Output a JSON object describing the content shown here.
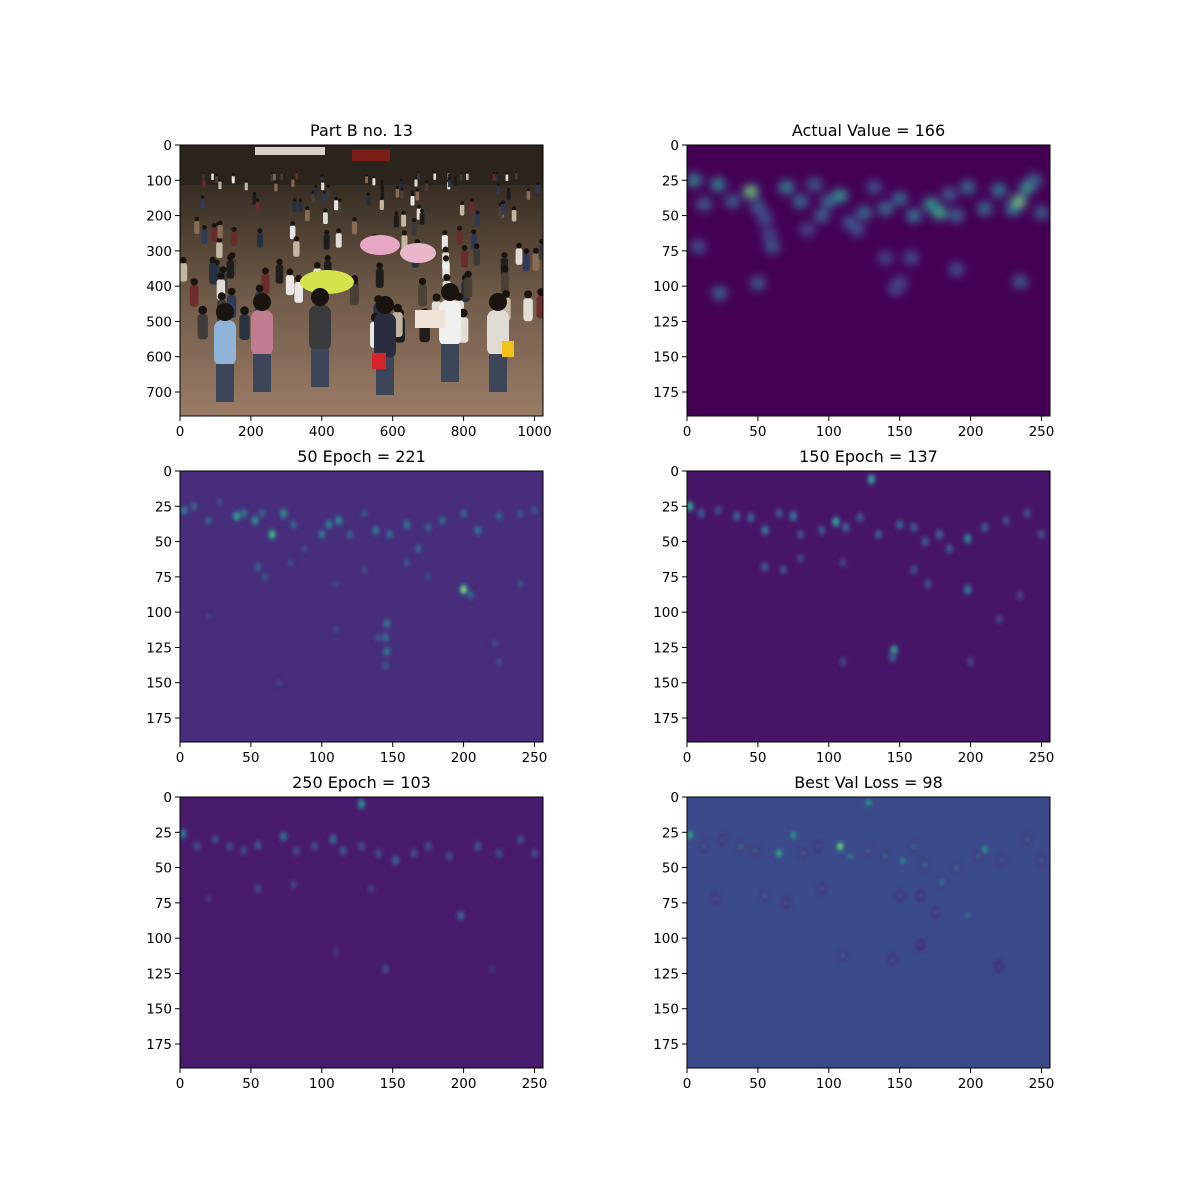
{
  "chart_data": [
    {
      "type": "heatmap",
      "content": "photo",
      "title": "Part B no. 13",
      "x_range": [
        0,
        1024
      ],
      "y_range": [
        0,
        768
      ],
      "x_ticks": [
        0,
        200,
        400,
        600,
        800,
        1000
      ],
      "y_ticks": [
        0,
        100,
        200,
        300,
        400,
        500,
        600,
        700
      ]
    },
    {
      "type": "heatmap",
      "content": "density",
      "title": "Actual Value = 166",
      "x_range": [
        0,
        256
      ],
      "y_range": [
        0,
        192
      ],
      "x_ticks": [
        0,
        50,
        100,
        150,
        200,
        250
      ],
      "y_ticks": [
        0,
        25,
        50,
        75,
        100,
        125,
        150,
        175
      ],
      "background": "#440154",
      "blobs": [
        [
          5,
          25,
          0.6
        ],
        [
          12,
          42,
          0.4
        ],
        [
          8,
          72,
          0.35
        ],
        [
          22,
          28,
          0.6
        ],
        [
          32,
          40,
          0.4
        ],
        [
          45,
          33,
          0.95
        ],
        [
          50,
          44,
          0.4
        ],
        [
          55,
          52,
          0.35
        ],
        [
          58,
          63,
          0.3
        ],
        [
          70,
          30,
          0.6
        ],
        [
          80,
          40,
          0.5
        ],
        [
          90,
          28,
          0.4
        ],
        [
          95,
          50,
          0.45
        ],
        [
          100,
          40,
          0.5
        ],
        [
          108,
          36,
          0.7
        ],
        [
          115,
          55,
          0.4
        ],
        [
          125,
          48,
          0.5
        ],
        [
          132,
          30,
          0.35
        ],
        [
          140,
          45,
          0.5
        ],
        [
          150,
          38,
          0.5
        ],
        [
          160,
          50,
          0.55
        ],
        [
          172,
          42,
          0.7
        ],
        [
          178,
          48,
          0.8
        ],
        [
          185,
          35,
          0.4
        ],
        [
          190,
          50,
          0.45
        ],
        [
          198,
          30,
          0.5
        ],
        [
          210,
          45,
          0.5
        ],
        [
          220,
          32,
          0.55
        ],
        [
          230,
          45,
          0.6
        ],
        [
          234,
          40,
          0.95
        ],
        [
          240,
          30,
          0.75
        ],
        [
          245,
          25,
          0.45
        ],
        [
          250,
          48,
          0.4
        ],
        [
          60,
          72,
          0.4
        ],
        [
          85,
          60,
          0.3
        ],
        [
          120,
          60,
          0.35
        ],
        [
          140,
          80,
          0.3
        ],
        [
          158,
          80,
          0.35
        ],
        [
          190,
          88,
          0.35
        ],
        [
          150,
          98,
          0.4
        ],
        [
          147,
          102,
          0.3
        ],
        [
          50,
          98,
          0.4
        ],
        [
          23,
          105,
          0.45
        ],
        [
          235,
          97,
          0.4
        ]
      ]
    },
    {
      "type": "heatmap",
      "content": "density",
      "title": "50 Epoch = 221",
      "x_range": [
        0,
        256
      ],
      "y_range": [
        0,
        192
      ],
      "x_ticks": [
        0,
        50,
        100,
        150,
        200,
        250
      ],
      "y_ticks": [
        0,
        25,
        50,
        75,
        100,
        125,
        150,
        175
      ],
      "background": "#472d7b",
      "blobs": [
        [
          3,
          28,
          0.5
        ],
        [
          10,
          25,
          0.4
        ],
        [
          20,
          35,
          0.4
        ],
        [
          28,
          22,
          0.3
        ],
        [
          40,
          32,
          0.7
        ],
        [
          45,
          30,
          0.5
        ],
        [
          53,
          35,
          0.6
        ],
        [
          58,
          30,
          0.4
        ],
        [
          65,
          45,
          0.8
        ],
        [
          73,
          30,
          0.6
        ],
        [
          80,
          38,
          0.4
        ],
        [
          88,
          55,
          0.3
        ],
        [
          100,
          45,
          0.5
        ],
        [
          105,
          38,
          0.55
        ],
        [
          112,
          35,
          0.6
        ],
        [
          120,
          45,
          0.4
        ],
        [
          130,
          30,
          0.35
        ],
        [
          138,
          42,
          0.5
        ],
        [
          148,
          45,
          0.45
        ],
        [
          160,
          38,
          0.5
        ],
        [
          168,
          55,
          0.4
        ],
        [
          175,
          40,
          0.4
        ],
        [
          185,
          35,
          0.45
        ],
        [
          200,
          30,
          0.4
        ],
        [
          210,
          42,
          0.5
        ],
        [
          225,
          32,
          0.4
        ],
        [
          240,
          30,
          0.35
        ],
        [
          250,
          28,
          0.35
        ],
        [
          55,
          68,
          0.4
        ],
        [
          60,
          75,
          0.35
        ],
        [
          78,
          65,
          0.3
        ],
        [
          110,
          80,
          0.3
        ],
        [
          130,
          70,
          0.3
        ],
        [
          160,
          65,
          0.35
        ],
        [
          175,
          75,
          0.3
        ],
        [
          200,
          84,
          0.95
        ],
        [
          205,
          88,
          0.4
        ],
        [
          240,
          80,
          0.35
        ],
        [
          146,
          108,
          0.5
        ],
        [
          145,
          118,
          0.45
        ],
        [
          146,
          128,
          0.5
        ],
        [
          145,
          138,
          0.35
        ],
        [
          110,
          112,
          0.3
        ],
        [
          140,
          118,
          0.35
        ],
        [
          222,
          122,
          0.3
        ],
        [
          225,
          135,
          0.3
        ],
        [
          20,
          103,
          0.25
        ],
        [
          70,
          150,
          0.25
        ]
      ]
    },
    {
      "type": "heatmap",
      "content": "density",
      "title": "150 Epoch = 137",
      "x_range": [
        0,
        256
      ],
      "y_range": [
        0,
        192
      ],
      "x_ticks": [
        0,
        50,
        100,
        150,
        200,
        250
      ],
      "y_ticks": [
        0,
        25,
        50,
        75,
        100,
        125,
        150,
        175
      ],
      "background": "#471567",
      "blobs": [
        [
          2,
          25,
          0.7
        ],
        [
          10,
          30,
          0.35
        ],
        [
          22,
          28,
          0.3
        ],
        [
          35,
          32,
          0.4
        ],
        [
          45,
          33,
          0.4
        ],
        [
          55,
          42,
          0.5
        ],
        [
          65,
          30,
          0.35
        ],
        [
          75,
          32,
          0.5
        ],
        [
          80,
          45,
          0.3
        ],
        [
          95,
          42,
          0.35
        ],
        [
          105,
          36,
          0.7
        ],
        [
          112,
          40,
          0.4
        ],
        [
          122,
          33,
          0.35
        ],
        [
          135,
          45,
          0.35
        ],
        [
          150,
          38,
          0.4
        ],
        [
          160,
          40,
          0.35
        ],
        [
          168,
          50,
          0.35
        ],
        [
          178,
          45,
          0.4
        ],
        [
          185,
          55,
          0.35
        ],
        [
          198,
          48,
          0.55
        ],
        [
          210,
          40,
          0.35
        ],
        [
          225,
          35,
          0.3
        ],
        [
          240,
          30,
          0.3
        ],
        [
          250,
          45,
          0.3
        ],
        [
          130,
          6,
          0.7
        ],
        [
          55,
          68,
          0.35
        ],
        [
          68,
          70,
          0.3
        ],
        [
          80,
          62,
          0.25
        ],
        [
          110,
          65,
          0.25
        ],
        [
          160,
          70,
          0.3
        ],
        [
          170,
          80,
          0.3
        ],
        [
          198,
          84,
          0.5
        ],
        [
          235,
          88,
          0.25
        ],
        [
          146,
          127,
          0.7
        ],
        [
          145,
          132,
          0.4
        ],
        [
          110,
          135,
          0.25
        ],
        [
          200,
          135,
          0.25
        ],
        [
          220,
          105,
          0.25
        ]
      ]
    },
    {
      "type": "heatmap",
      "content": "density",
      "title": "250 Epoch = 103",
      "x_range": [
        0,
        256
      ],
      "y_range": [
        0,
        192
      ],
      "x_ticks": [
        0,
        50,
        100,
        150,
        200,
        250
      ],
      "y_ticks": [
        0,
        25,
        50,
        75,
        100,
        125,
        150,
        175
      ],
      "background": "#481a6c",
      "blobs": [
        [
          2,
          26,
          0.5
        ],
        [
          12,
          35,
          0.3
        ],
        [
          25,
          30,
          0.3
        ],
        [
          35,
          35,
          0.3
        ],
        [
          45,
          38,
          0.3
        ],
        [
          55,
          34,
          0.35
        ],
        [
          73,
          28,
          0.45
        ],
        [
          82,
          38,
          0.3
        ],
        [
          95,
          35,
          0.3
        ],
        [
          108,
          30,
          0.45
        ],
        [
          115,
          38,
          0.35
        ],
        [
          128,
          35,
          0.3
        ],
        [
          140,
          40,
          0.3
        ],
        [
          152,
          45,
          0.4
        ],
        [
          165,
          40,
          0.3
        ],
        [
          175,
          35,
          0.3
        ],
        [
          190,
          42,
          0.3
        ],
        [
          210,
          35,
          0.35
        ],
        [
          225,
          40,
          0.3
        ],
        [
          240,
          30,
          0.3
        ],
        [
          250,
          40,
          0.3
        ],
        [
          128,
          5,
          0.6
        ],
        [
          55,
          65,
          0.3
        ],
        [
          80,
          62,
          0.25
        ],
        [
          135,
          65,
          0.25
        ],
        [
          198,
          84,
          0.4
        ],
        [
          145,
          122,
          0.3
        ],
        [
          220,
          122,
          0.2
        ],
        [
          110,
          110,
          0.2
        ],
        [
          20,
          72,
          0.2
        ]
      ]
    },
    {
      "type": "heatmap",
      "content": "density",
      "title": "Best Val Loss = 98",
      "x_range": [
        0,
        256
      ],
      "y_range": [
        0,
        192
      ],
      "x_ticks": [
        0,
        50,
        100,
        150,
        200,
        250
      ],
      "y_ticks": [
        0,
        25,
        50,
        75,
        100,
        125,
        150,
        175
      ],
      "background": "#3b4a8a",
      "blobs": [
        [
          2,
          27,
          0.7
        ],
        [
          12,
          35,
          0.35
        ],
        [
          25,
          30,
          0.3
        ],
        [
          38,
          35,
          0.4
        ],
        [
          48,
          38,
          0.35
        ],
        [
          65,
          40,
          0.7
        ],
        [
          75,
          27,
          0.6
        ],
        [
          82,
          40,
          0.35
        ],
        [
          92,
          35,
          0.3
        ],
        [
          108,
          35,
          0.9
        ],
        [
          115,
          42,
          0.5
        ],
        [
          128,
          38,
          0.4
        ],
        [
          140,
          42,
          0.4
        ],
        [
          152,
          45,
          0.55
        ],
        [
          160,
          35,
          0.4
        ],
        [
          168,
          48,
          0.4
        ],
        [
          180,
          60,
          0.45
        ],
        [
          190,
          50,
          0.4
        ],
        [
          205,
          42,
          0.35
        ],
        [
          210,
          37,
          0.6
        ],
        [
          222,
          45,
          0.35
        ],
        [
          240,
          30,
          0.35
        ],
        [
          250,
          45,
          0.35
        ],
        [
          128,
          4,
          0.6
        ],
        [
          55,
          70,
          0.35
        ],
        [
          70,
          75,
          0.3
        ],
        [
          95,
          65,
          0.3
        ],
        [
          150,
          70,
          0.3
        ],
        [
          165,
          70,
          0.3
        ],
        [
          175,
          82,
          0.3
        ],
        [
          198,
          84,
          0.45
        ],
        [
          110,
          112,
          0.35
        ],
        [
          145,
          115,
          0.3
        ],
        [
          165,
          105,
          0.25
        ],
        [
          220,
          120,
          0.25
        ],
        [
          20,
          72,
          0.3
        ]
      ]
    }
  ]
}
